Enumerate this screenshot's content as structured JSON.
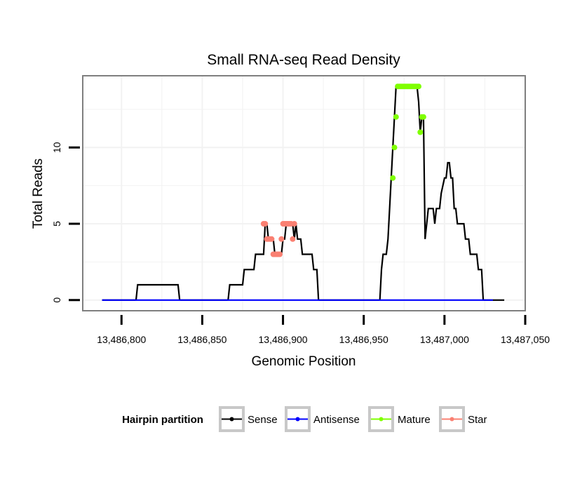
{
  "chart_data": {
    "type": "line",
    "title": "Small RNA-seq Read Density",
    "xlabel": "Genomic Position",
    "ylabel": "Total Reads",
    "xlim": [
      13486776,
      13487050
    ],
    "ylim": [
      -0.7,
      14.7
    ],
    "x_ticks": [
      13486800,
      13486850,
      13486900,
      13486950,
      13487000,
      13487050
    ],
    "x_tick_labels": [
      "13,486,800",
      "13,486,850",
      "13,486,900",
      "13,486,950",
      "13,487,000",
      "13,487,050"
    ],
    "y_ticks": [
      0,
      5,
      10
    ],
    "y_tick_labels": [
      "0",
      "5",
      "10"
    ],
    "grid": true,
    "legend": {
      "title": "Hairpin partition",
      "position": "bottom",
      "entries": [
        "Sense",
        "Antisense",
        "Mature",
        "Star"
      ]
    },
    "colors": {
      "Sense": "#000000",
      "Antisense": "#0000ff",
      "Mature": "#7fff00",
      "Star": "#fa8072",
      "panel_border": "#7f7f7f",
      "grid": "#f2f2f2"
    },
    "series": [
      {
        "name": "Sense",
        "type": "line",
        "x": [
          13486788,
          13486809,
          13486810,
          13486835,
          13486836,
          13486866,
          13486867,
          13486875,
          13486876,
          13486882,
          13486883,
          13486888,
          13486889,
          13486890,
          13486891,
          13486894,
          13486895,
          13486899,
          13486900,
          13486901,
          13486902,
          13486906,
          13486907,
          13486908,
          13486909,
          13486911,
          13486912,
          13486918,
          13486919,
          13486921,
          13486922,
          13486925,
          13486960,
          13486961,
          13486962,
          13486964,
          13486965,
          13486966,
          13486967,
          13486968,
          13486969,
          13486970,
          13486983,
          13486984,
          13486985,
          13486986,
          13486987,
          13486988,
          13486989,
          13486990,
          13486993,
          13486994,
          13486995,
          13486997,
          13486998,
          13487000,
          13487001,
          13487002,
          13487003,
          13487004,
          13487005,
          13487006,
          13487007,
          13487008,
          13487009,
          13487010,
          13487012,
          13487013,
          13487015,
          13487016,
          13487020,
          13487021,
          13487023,
          13487024,
          13487025,
          13487026,
          13487028,
          13487029,
          13487030,
          13487037
        ],
        "y": [
          0,
          0,
          1,
          1,
          0,
          0,
          1,
          1,
          2,
          2,
          3,
          3,
          5,
          5,
          4,
          4,
          3,
          3,
          4,
          4,
          5,
          5,
          4,
          5,
          4,
          4,
          3,
          3,
          2,
          2,
          0,
          0,
          0,
          2,
          3,
          3,
          4,
          6,
          8,
          10,
          12,
          14,
          14,
          13,
          11,
          12,
          12,
          4,
          5,
          6,
          6,
          5,
          6,
          6,
          7,
          8,
          8,
          9,
          9,
          8,
          8,
          6,
          6,
          5,
          5,
          5,
          5,
          4,
          4,
          3,
          3,
          2,
          2,
          0,
          0,
          0,
          0,
          0,
          0,
          0
        ]
      },
      {
        "name": "Antisense",
        "type": "line",
        "x": [
          13486788,
          13487030
        ],
        "y": [
          0,
          0
        ]
      },
      {
        "name": "Mature",
        "type": "points",
        "x": [
          13486968,
          13486969,
          13486970,
          13486971,
          13486972,
          13486973,
          13486974,
          13486975,
          13486976,
          13486977,
          13486978,
          13486979,
          13486980,
          13486981,
          13486982,
          13486983,
          13486984,
          13486985,
          13486986,
          13486987
        ],
        "y": [
          8,
          10,
          12,
          14,
          14,
          14,
          14,
          14,
          14,
          14,
          14,
          14,
          14,
          14,
          14,
          14,
          14,
          11,
          12,
          12
        ]
      },
      {
        "name": "Star",
        "type": "points",
        "x": [
          13486888,
          13486889,
          13486890,
          13486891,
          13486892,
          13486893,
          13486894,
          13486895,
          13486896,
          13486897,
          13486898,
          13486899,
          13486900,
          13486901,
          13486902,
          13486903,
          13486904,
          13486905,
          13486906,
          13486907
        ],
        "y": [
          5,
          5,
          4,
          4,
          4,
          4,
          3,
          3,
          3,
          3,
          3,
          4,
          5,
          5,
          5,
          5,
          5,
          5,
          4,
          5
        ]
      }
    ]
  }
}
